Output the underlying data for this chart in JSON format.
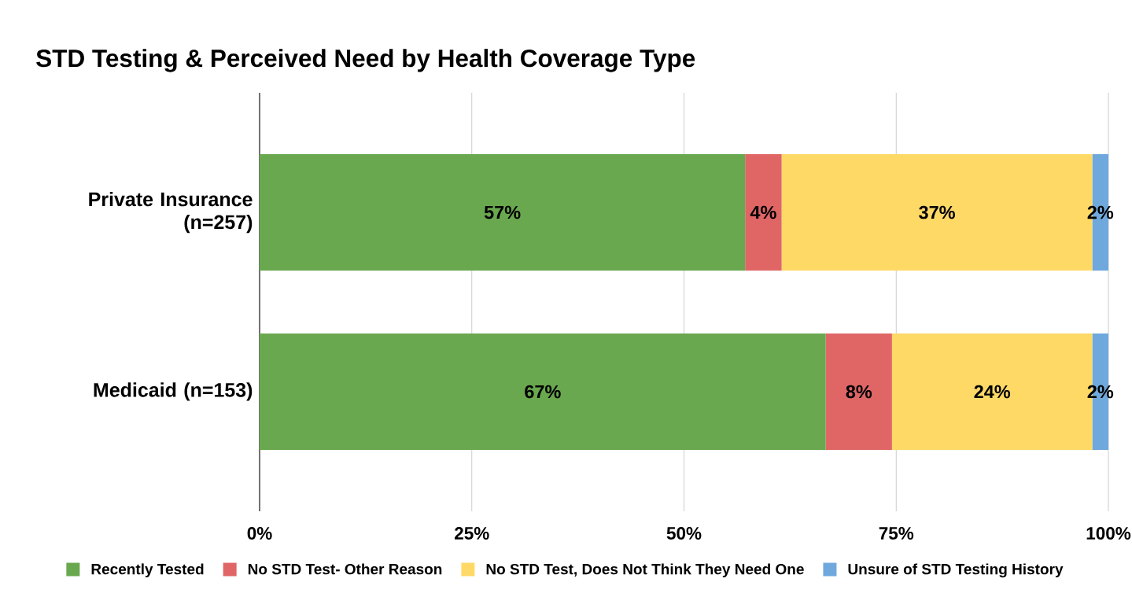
{
  "chart_data": {
    "type": "bar",
    "orientation": "horizontal",
    "stacked": true,
    "title": "STD Testing & Perceived Need by Health Coverage Type",
    "categories": [
      "Private Insurance (n=257)",
      "Medicaid (n=153)"
    ],
    "series": [
      {
        "name": "Recently Tested",
        "color": "#6aa84f",
        "values": [
          57.2,
          66.7
        ],
        "value_labels": [
          "57%",
          "67%"
        ]
      },
      {
        "name": "No STD Test- Other Reason",
        "color": "#e06666",
        "values": [
          4.3,
          7.8
        ],
        "value_labels": [
          "4%",
          "8%"
        ]
      },
      {
        "name": "No STD Test, Does Not Think They Need One",
        "color": "#ffd966",
        "values": [
          36.6,
          23.6
        ],
        "value_labels": [
          "37%",
          "24%"
        ]
      },
      {
        "name": "Unsure of STD Testing History",
        "color": "#6fa8dc",
        "values": [
          1.9,
          1.9
        ],
        "value_labels": [
          "2%",
          "2%"
        ]
      }
    ],
    "xlim": [
      0,
      100
    ],
    "xticks": [
      {
        "value": 0,
        "label": "0%"
      },
      {
        "value": 25,
        "label": "25%"
      },
      {
        "value": 50,
        "label": "50%"
      },
      {
        "value": 75,
        "label": "75%"
      },
      {
        "value": 100,
        "label": "100%"
      }
    ],
    "grid": "x",
    "legend": "bottom"
  }
}
